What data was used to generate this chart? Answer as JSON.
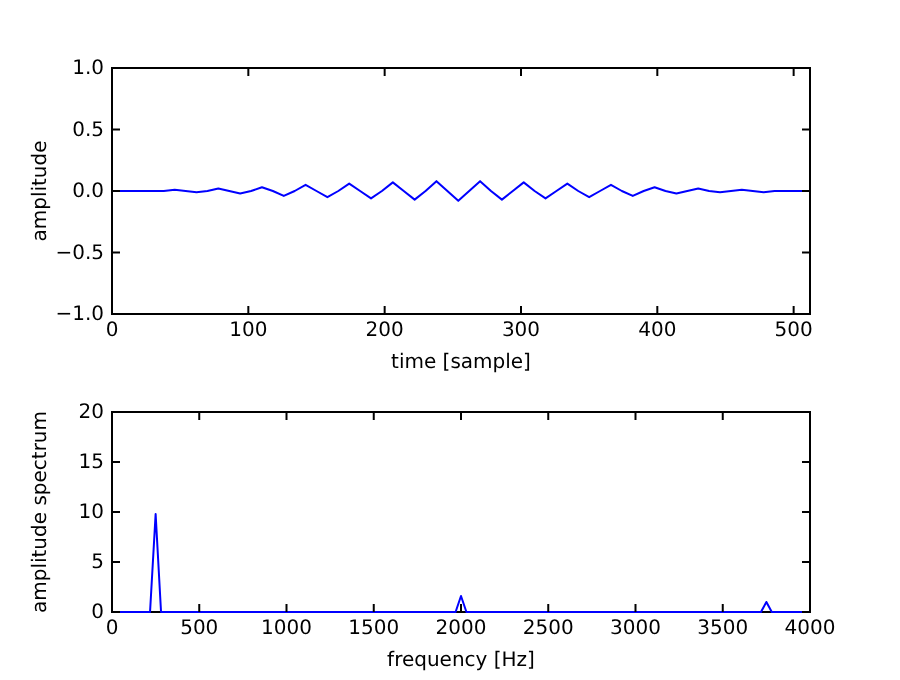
{
  "chart_data": [
    {
      "type": "line",
      "xlabel": "time [sample]",
      "ylabel": "amplitude",
      "xlim": [
        0,
        512
      ],
      "ylim": [
        -1,
        1
      ],
      "xticks": [
        0,
        100,
        200,
        300,
        400,
        500
      ],
      "yticks": [
        {
          "value": -1,
          "label": "−1.0"
        },
        {
          "value": -0.5,
          "label": "−0.5"
        },
        {
          "value": 0,
          "label": "0.0"
        },
        {
          "value": 0.5,
          "label": "0.5"
        },
        {
          "value": 1,
          "label": "1.0"
        }
      ],
      "grid": false,
      "marker": "none",
      "line_style": "solid",
      "series": [
        {
          "color": "#0000ff",
          "x": [
            0,
            6,
            14,
            22,
            30,
            38,
            46,
            54,
            62,
            70,
            78,
            86,
            94,
            102,
            110,
            118,
            126,
            134,
            142,
            150,
            158,
            166,
            174,
            182,
            190,
            198,
            206,
            214,
            222,
            230,
            238,
            246,
            254,
            262,
            270,
            278,
            286,
            294,
            302,
            310,
            318,
            326,
            334,
            342,
            350,
            358,
            366,
            374,
            382,
            390,
            398,
            406,
            414,
            422,
            430,
            438,
            446,
            454,
            462,
            470,
            478,
            486,
            494,
            502,
            510
          ],
          "values": [
            0,
            0,
            0,
            0,
            0,
            0,
            0.01,
            0,
            -0.01,
            0,
            0.02,
            0,
            -0.02,
            0,
            0.03,
            0,
            -0.04,
            0,
            0.05,
            0,
            -0.05,
            0,
            0.06,
            0,
            -0.06,
            0,
            0.07,
            0,
            -0.07,
            0,
            0.08,
            0,
            -0.08,
            0,
            0.08,
            0,
            -0.07,
            0,
            0.07,
            0,
            -0.06,
            0,
            0.06,
            0,
            -0.05,
            0,
            0.05,
            0,
            -0.04,
            0,
            0.03,
            0,
            -0.02,
            0,
            0.02,
            0,
            -0.01,
            0,
            0.01,
            0,
            -0.01,
            0,
            0,
            0,
            0
          ]
        }
      ]
    },
    {
      "type": "line",
      "xlabel": "frequency [Hz]",
      "ylabel": "amplitude spectrum",
      "xlim": [
        0,
        4000
      ],
      "ylim": [
        0,
        20
      ],
      "xticks": [
        0,
        500,
        1000,
        1500,
        2000,
        2500,
        3000,
        3500,
        4000
      ],
      "yticks": [
        0,
        5,
        10,
        15,
        20
      ],
      "grid": false,
      "marker": "none",
      "line_style": "solid",
      "series": [
        {
          "color": "#0000ff",
          "x": [
            0,
            218,
            250,
            281,
            1969,
            2000,
            2031,
            3719,
            3750,
            3781,
            4000
          ],
          "values": [
            0,
            0,
            9.8,
            0,
            0,
            1.6,
            0,
            0,
            1.0,
            0,
            0
          ]
        }
      ]
    }
  ]
}
